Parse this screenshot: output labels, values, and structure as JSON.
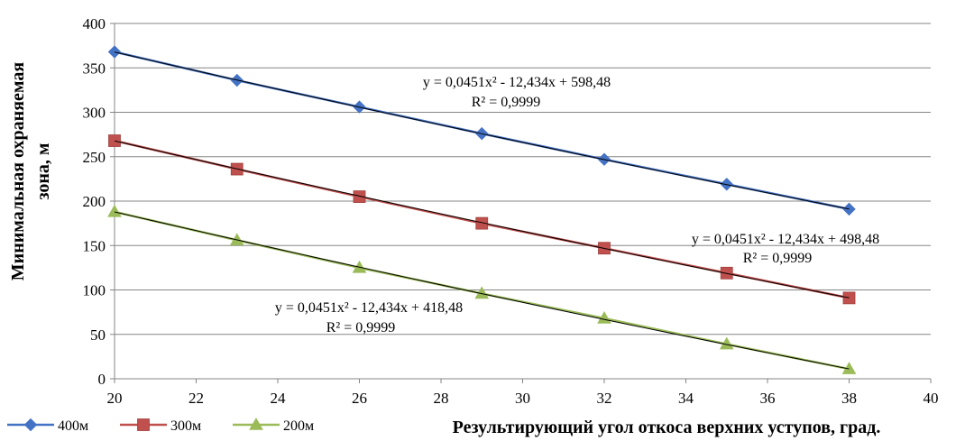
{
  "chart_data": {
    "type": "line",
    "title": "",
    "xlabel": "Результирующий угол откоса верхних уступов, град.",
    "ylabel_lines": [
      "Минимальная охраняемая",
      "зона, м"
    ],
    "xlim": [
      20,
      40
    ],
    "ylim": [
      0,
      400
    ],
    "x_ticks": [
      20,
      22,
      24,
      26,
      28,
      30,
      32,
      34,
      36,
      38,
      40
    ],
    "y_ticks": [
      0,
      50,
      100,
      150,
      200,
      250,
      300,
      350,
      400
    ],
    "grid": "horizontal",
    "legend_position": "bottom-left",
    "x": [
      20,
      23,
      26,
      29,
      32,
      35,
      38
    ],
    "series": [
      {
        "name": "400м",
        "marker": "diamond",
        "color": "#4472C4",
        "values": [
          368,
          336,
          306,
          276,
          247,
          219,
          191
        ]
      },
      {
        "name": "300м",
        "marker": "square",
        "color": "#C0504D",
        "values": [
          268,
          236,
          205,
          175,
          147,
          119,
          91
        ]
      },
      {
        "name": "200м",
        "marker": "triangle",
        "color": "#9BBB59",
        "values": [
          188,
          156,
          125,
          96,
          68,
          39,
          11
        ]
      }
    ],
    "trendlines": [
      {
        "series": "400м",
        "a": 0.0451,
        "b": -12.434,
        "c": 598.48,
        "equation": "y = 0,0451x² - 12,434x + 598,48",
        "r2": "R² = 0,9999"
      },
      {
        "series": "300м",
        "a": 0.0451,
        "b": -12.434,
        "c": 498.48,
        "equation": "y = 0,0451x² - 12,434x + 498,48",
        "r2": "R² = 0,9999"
      },
      {
        "series": "200м",
        "a": 0.0451,
        "b": -12.434,
        "c": 418.48,
        "equation": "y = 0,0451x² - 12,434x + 418,48",
        "r2": "R² = 0,9999"
      }
    ]
  }
}
